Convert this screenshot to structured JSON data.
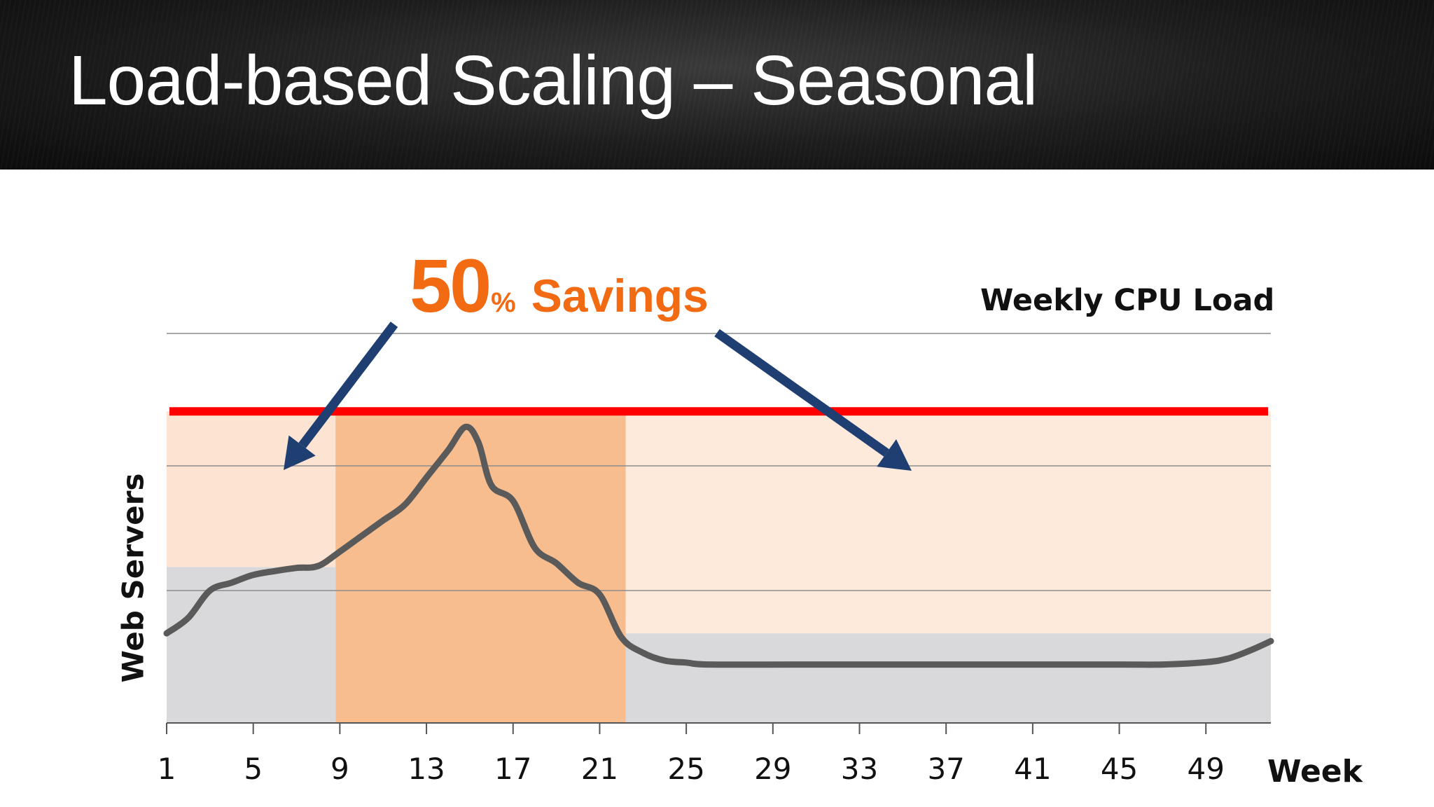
{
  "slide": {
    "title": "Load-based Scaling – Seasonal"
  },
  "callout": {
    "number": "50",
    "unit": "%",
    "label": "Savings",
    "color": "#f26a12"
  },
  "colors": {
    "capacity_line": "#ff0000",
    "load_line": "#5a5a5a",
    "arrow": "#1f3f73",
    "peak_band": "#f7bd8e",
    "headroom_band": "#fde3d2",
    "offpeak_band": "#fdeadb",
    "baseline_band": "#d9d9db",
    "grid": "#8c8c8c"
  },
  "chart_data": {
    "type": "area",
    "title": "Weekly CPU Load",
    "xlabel": "Week",
    "ylabel": "Web Servers",
    "x_ticks": [
      1,
      5,
      9,
      13,
      17,
      21,
      25,
      29,
      33,
      37,
      41,
      45,
      49
    ],
    "xlim": [
      1,
      52
    ],
    "ylim": [
      0,
      100
    ],
    "grid": true,
    "legend": "none",
    "static_capacity": 80,
    "load_series": [
      [
        1,
        23
      ],
      [
        2,
        27
      ],
      [
        3,
        34
      ],
      [
        4,
        36
      ],
      [
        5,
        38
      ],
      [
        6,
        39
      ],
      [
        7,
        39.8
      ],
      [
        8,
        40.3
      ],
      [
        9,
        44
      ],
      [
        10,
        48
      ],
      [
        11,
        52
      ],
      [
        12,
        56
      ],
      [
        13,
        63
      ],
      [
        14,
        70
      ],
      [
        14.8,
        76
      ],
      [
        15.4,
        72
      ],
      [
        16,
        61
      ],
      [
        17,
        57
      ],
      [
        18,
        45
      ],
      [
        19,
        41
      ],
      [
        20,
        36
      ],
      [
        21,
        33
      ],
      [
        22,
        22
      ],
      [
        23,
        18
      ],
      [
        24,
        16
      ],
      [
        25,
        15.5
      ],
      [
        26,
        15
      ],
      [
        30,
        15
      ],
      [
        35,
        15
      ],
      [
        40,
        15
      ],
      [
        45,
        15
      ],
      [
        47,
        15
      ],
      [
        49,
        15.6
      ],
      [
        50,
        16.5
      ],
      [
        51,
        18.5
      ],
      [
        52,
        21
      ]
    ],
    "scaled_capacity": [
      {
        "from": 1,
        "to": 8.8,
        "value": 40
      },
      {
        "from": 8.8,
        "to": 22.2,
        "value": 80
      },
      {
        "from": 22.2,
        "to": 52,
        "value": 23
      }
    ]
  }
}
